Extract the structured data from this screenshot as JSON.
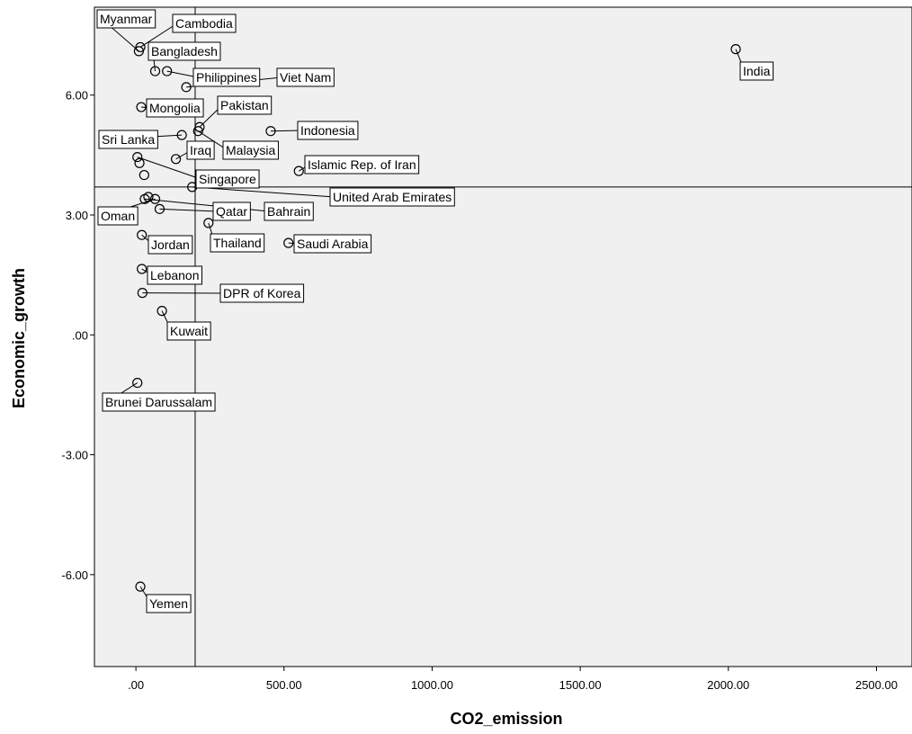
{
  "chart_data": {
    "type": "scatter",
    "title": "",
    "xlabel": "CO2_emission",
    "ylabel": "Economic_growth",
    "xlim": [
      -140,
      2620
    ],
    "ylim": [
      -8.3,
      8.2
    ],
    "x_ticks": [
      0,
      500,
      1000,
      1500,
      2000,
      2500
    ],
    "x_tick_labels": [
      ".00",
      "500.00",
      "1000.00",
      "1500.00",
      "2000.00",
      "2500.00"
    ],
    "y_ticks": [
      6,
      3,
      0,
      -3,
      -6
    ],
    "y_tick_labels": [
      "6.00",
      "3.00",
      ".00",
      "-3.00",
      "-6.00"
    ],
    "reference_lines": {
      "x": 200,
      "y": 3.7
    },
    "grid": false,
    "legend": "none",
    "colors": {
      "plot_background": "#f0f0f0",
      "marker_stroke": "#000000",
      "label_box": "#ffffff"
    },
    "points": [
      {
        "label": "Myanmar",
        "x": 10,
        "y": 7.1
      },
      {
        "label": "Cambodia",
        "x": 15,
        "y": 7.2
      },
      {
        "label": "Bangladesh",
        "x": 65,
        "y": 6.6
      },
      {
        "label": "Philippines",
        "x": 105,
        "y": 6.6
      },
      {
        "label": "Viet Nam",
        "x": 170,
        "y": 6.2
      },
      {
        "label": "India",
        "x": 2025,
        "y": 7.15
      },
      {
        "label": "Mongolia",
        "x": 18,
        "y": 5.7
      },
      {
        "label": "Pakistan",
        "x": 215,
        "y": 5.2
      },
      {
        "label": "Indonesia",
        "x": 455,
        "y": 5.1
      },
      {
        "label": "Sri Lanka",
        "x": 155,
        "y": 5.0
      },
      {
        "label": "Malaysia",
        "x": 210,
        "y": 5.1
      },
      {
        "label": "Iraq",
        "x": 135,
        "y": 4.4
      },
      {
        "label": "Islamic Rep. of Iran",
        "x": 550,
        "y": 4.1
      },
      {
        "label": "Singapore",
        "x": 5,
        "y": 4.45
      },
      {
        "label": "United Arab Emirates",
        "x": 190,
        "y": 3.7
      },
      {
        "label": "Bahrain",
        "x": 30,
        "y": 3.4
      },
      {
        "label": "Oman",
        "x": 65,
        "y": 3.4
      },
      {
        "label": "Qatar",
        "x": 80,
        "y": 3.15
      },
      {
        "label": "Thailand",
        "x": 245,
        "y": 2.8
      },
      {
        "label": "Saudi Arabia",
        "x": 515,
        "y": 2.3
      },
      {
        "label": "Jordan",
        "x": 20,
        "y": 2.5
      },
      {
        "label": "Lebanon",
        "x": 20,
        "y": 1.65
      },
      {
        "label": "DPR of Korea",
        "x": 22,
        "y": 1.05
      },
      {
        "label": "Kuwait",
        "x": 88,
        "y": 0.6
      },
      {
        "label": "Brunei Darussalam",
        "x": 5,
        "y": -1.2
      },
      {
        "label": "Yemen",
        "x": 15,
        "y": -6.3
      },
      {
        "label": "",
        "x": 12,
        "y": 4.3
      },
      {
        "label": "",
        "x": 28,
        "y": 4.0
      },
      {
        "label": "",
        "x": 42,
        "y": 3.45
      }
    ]
  }
}
